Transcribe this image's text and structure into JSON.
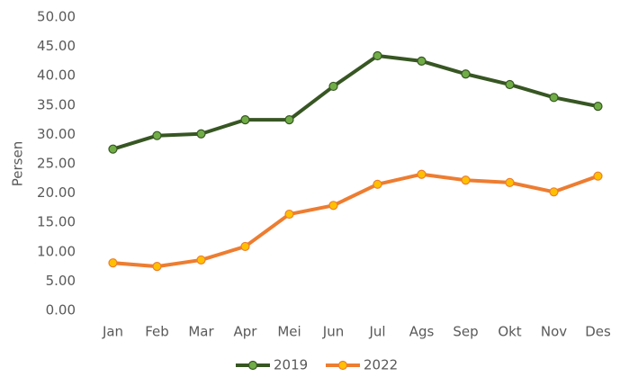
{
  "chart_data": {
    "type": "line",
    "y_label": "Persen",
    "categories": [
      "Jan",
      "Feb",
      "Mar",
      "Apr",
      "Mei",
      "Jun",
      "Jul",
      "Ags",
      "Sep",
      "Okt",
      "Nov",
      "Des"
    ],
    "series": [
      {
        "name": "2019",
        "color": "#375623",
        "marker_color": "#70ad47",
        "values": [
          27.5,
          29.8,
          30.1,
          32.5,
          32.5,
          38.2,
          43.4,
          42.5,
          40.3,
          38.5,
          36.3,
          34.8
        ]
      },
      {
        "name": "2022",
        "color": "#ed7d31",
        "marker_color": "#ffc000",
        "values": [
          8.1,
          7.5,
          8.6,
          10.9,
          16.4,
          17.9,
          21.5,
          23.2,
          22.2,
          21.8,
          20.2,
          22.9
        ]
      }
    ],
    "ylim": [
      0,
      50
    ],
    "yticks": [
      {
        "value": 0,
        "label": "0.00"
      },
      {
        "value": 5,
        "label": "5.00"
      },
      {
        "value": 10,
        "label": "10.00"
      },
      {
        "value": 15,
        "label": "15.00"
      },
      {
        "value": 20,
        "label": "20.00"
      },
      {
        "value": 25,
        "label": "25.00"
      },
      {
        "value": 30,
        "label": "30.00"
      },
      {
        "value": 35,
        "label": "35.00"
      },
      {
        "value": 40,
        "label": "40.00"
      },
      {
        "value": 45,
        "label": "45.00"
      },
      {
        "value": 50,
        "label": "50.00"
      }
    ],
    "grid": false,
    "legend": "bottom"
  }
}
